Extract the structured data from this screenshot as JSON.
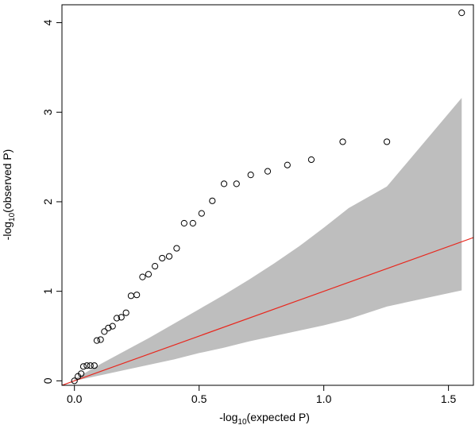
{
  "chart_data": {
    "type": "scatter",
    "title": "",
    "xlabel": {
      "prefix": "-log",
      "subscript": "10",
      "suffix": "(expected P)"
    },
    "ylabel": {
      "prefix": "-log",
      "subscript": "10",
      "suffix": "(observed P)"
    },
    "xlim": [
      -0.05,
      1.6
    ],
    "ylim": [
      -0.05,
      4.2
    ],
    "x_ticks": [
      0,
      0.5,
      1,
      1.5
    ],
    "x_tick_labels": [
      "0.0",
      "0.5",
      "1.0",
      "1.5"
    ],
    "y_ticks": [
      0,
      1,
      2,
      3,
      4
    ],
    "y_tick_labels": [
      "0",
      "1",
      "2",
      "3",
      "4"
    ],
    "grid": false,
    "points": [
      {
        "x": 0.0,
        "y": 0.0
      },
      {
        "x": 0.014,
        "y": 0.05
      },
      {
        "x": 0.027,
        "y": 0.08
      },
      {
        "x": 0.036,
        "y": 0.16
      },
      {
        "x": 0.05,
        "y": 0.17
      },
      {
        "x": 0.064,
        "y": 0.17
      },
      {
        "x": 0.08,
        "y": 0.17
      },
      {
        "x": 0.09,
        "y": 0.45
      },
      {
        "x": 0.105,
        "y": 0.46
      },
      {
        "x": 0.12,
        "y": 0.55
      },
      {
        "x": 0.136,
        "y": 0.59
      },
      {
        "x": 0.153,
        "y": 0.61
      },
      {
        "x": 0.17,
        "y": 0.7
      },
      {
        "x": 0.188,
        "y": 0.71
      },
      {
        "x": 0.207,
        "y": 0.76
      },
      {
        "x": 0.227,
        "y": 0.95
      },
      {
        "x": 0.25,
        "y": 0.96
      },
      {
        "x": 0.273,
        "y": 1.16
      },
      {
        "x": 0.297,
        "y": 1.19
      },
      {
        "x": 0.323,
        "y": 1.28
      },
      {
        "x": 0.352,
        "y": 1.37
      },
      {
        "x": 0.38,
        "y": 1.39
      },
      {
        "x": 0.41,
        "y": 1.48
      },
      {
        "x": 0.44,
        "y": 1.76
      },
      {
        "x": 0.475,
        "y": 1.76
      },
      {
        "x": 0.51,
        "y": 1.87
      },
      {
        "x": 0.553,
        "y": 2.01
      },
      {
        "x": 0.6,
        "y": 2.2
      },
      {
        "x": 0.65,
        "y": 2.2
      },
      {
        "x": 0.707,
        "y": 2.3
      },
      {
        "x": 0.775,
        "y": 2.34
      },
      {
        "x": 0.854,
        "y": 2.41
      },
      {
        "x": 0.95,
        "y": 2.47
      },
      {
        "x": 1.076,
        "y": 2.67
      },
      {
        "x": 1.253,
        "y": 2.67
      },
      {
        "x": 1.553,
        "y": 4.11
      }
    ],
    "reference_line": {
      "slope": 1,
      "intercept": 0,
      "color": "#e8271d"
    },
    "confidence_band": {
      "color": "#bebebe",
      "upper": [
        {
          "x": 0.0,
          "y": 0.02
        },
        {
          "x": 0.1,
          "y": 0.18
        },
        {
          "x": 0.2,
          "y": 0.33
        },
        {
          "x": 0.3,
          "y": 0.48
        },
        {
          "x": 0.4,
          "y": 0.64
        },
        {
          "x": 0.5,
          "y": 0.8
        },
        {
          "x": 0.6,
          "y": 0.96
        },
        {
          "x": 0.7,
          "y": 1.13
        },
        {
          "x": 0.8,
          "y": 1.31
        },
        {
          "x": 0.9,
          "y": 1.5
        },
        {
          "x": 1.0,
          "y": 1.71
        },
        {
          "x": 1.1,
          "y": 1.93
        },
        {
          "x": 1.253,
          "y": 2.17
        },
        {
          "x": 1.553,
          "y": 3.16
        }
      ],
      "lower": [
        {
          "x": 0.0,
          "y": 0.0
        },
        {
          "x": 0.1,
          "y": 0.06
        },
        {
          "x": 0.2,
          "y": 0.12
        },
        {
          "x": 0.3,
          "y": 0.18
        },
        {
          "x": 0.4,
          "y": 0.24
        },
        {
          "x": 0.5,
          "y": 0.31
        },
        {
          "x": 0.6,
          "y": 0.37
        },
        {
          "x": 0.7,
          "y": 0.44
        },
        {
          "x": 0.8,
          "y": 0.5
        },
        {
          "x": 0.9,
          "y": 0.56
        },
        {
          "x": 1.0,
          "y": 0.62
        },
        {
          "x": 1.1,
          "y": 0.69
        },
        {
          "x": 1.253,
          "y": 0.83
        },
        {
          "x": 1.553,
          "y": 1.01
        }
      ]
    },
    "point_style": "open-circle"
  }
}
